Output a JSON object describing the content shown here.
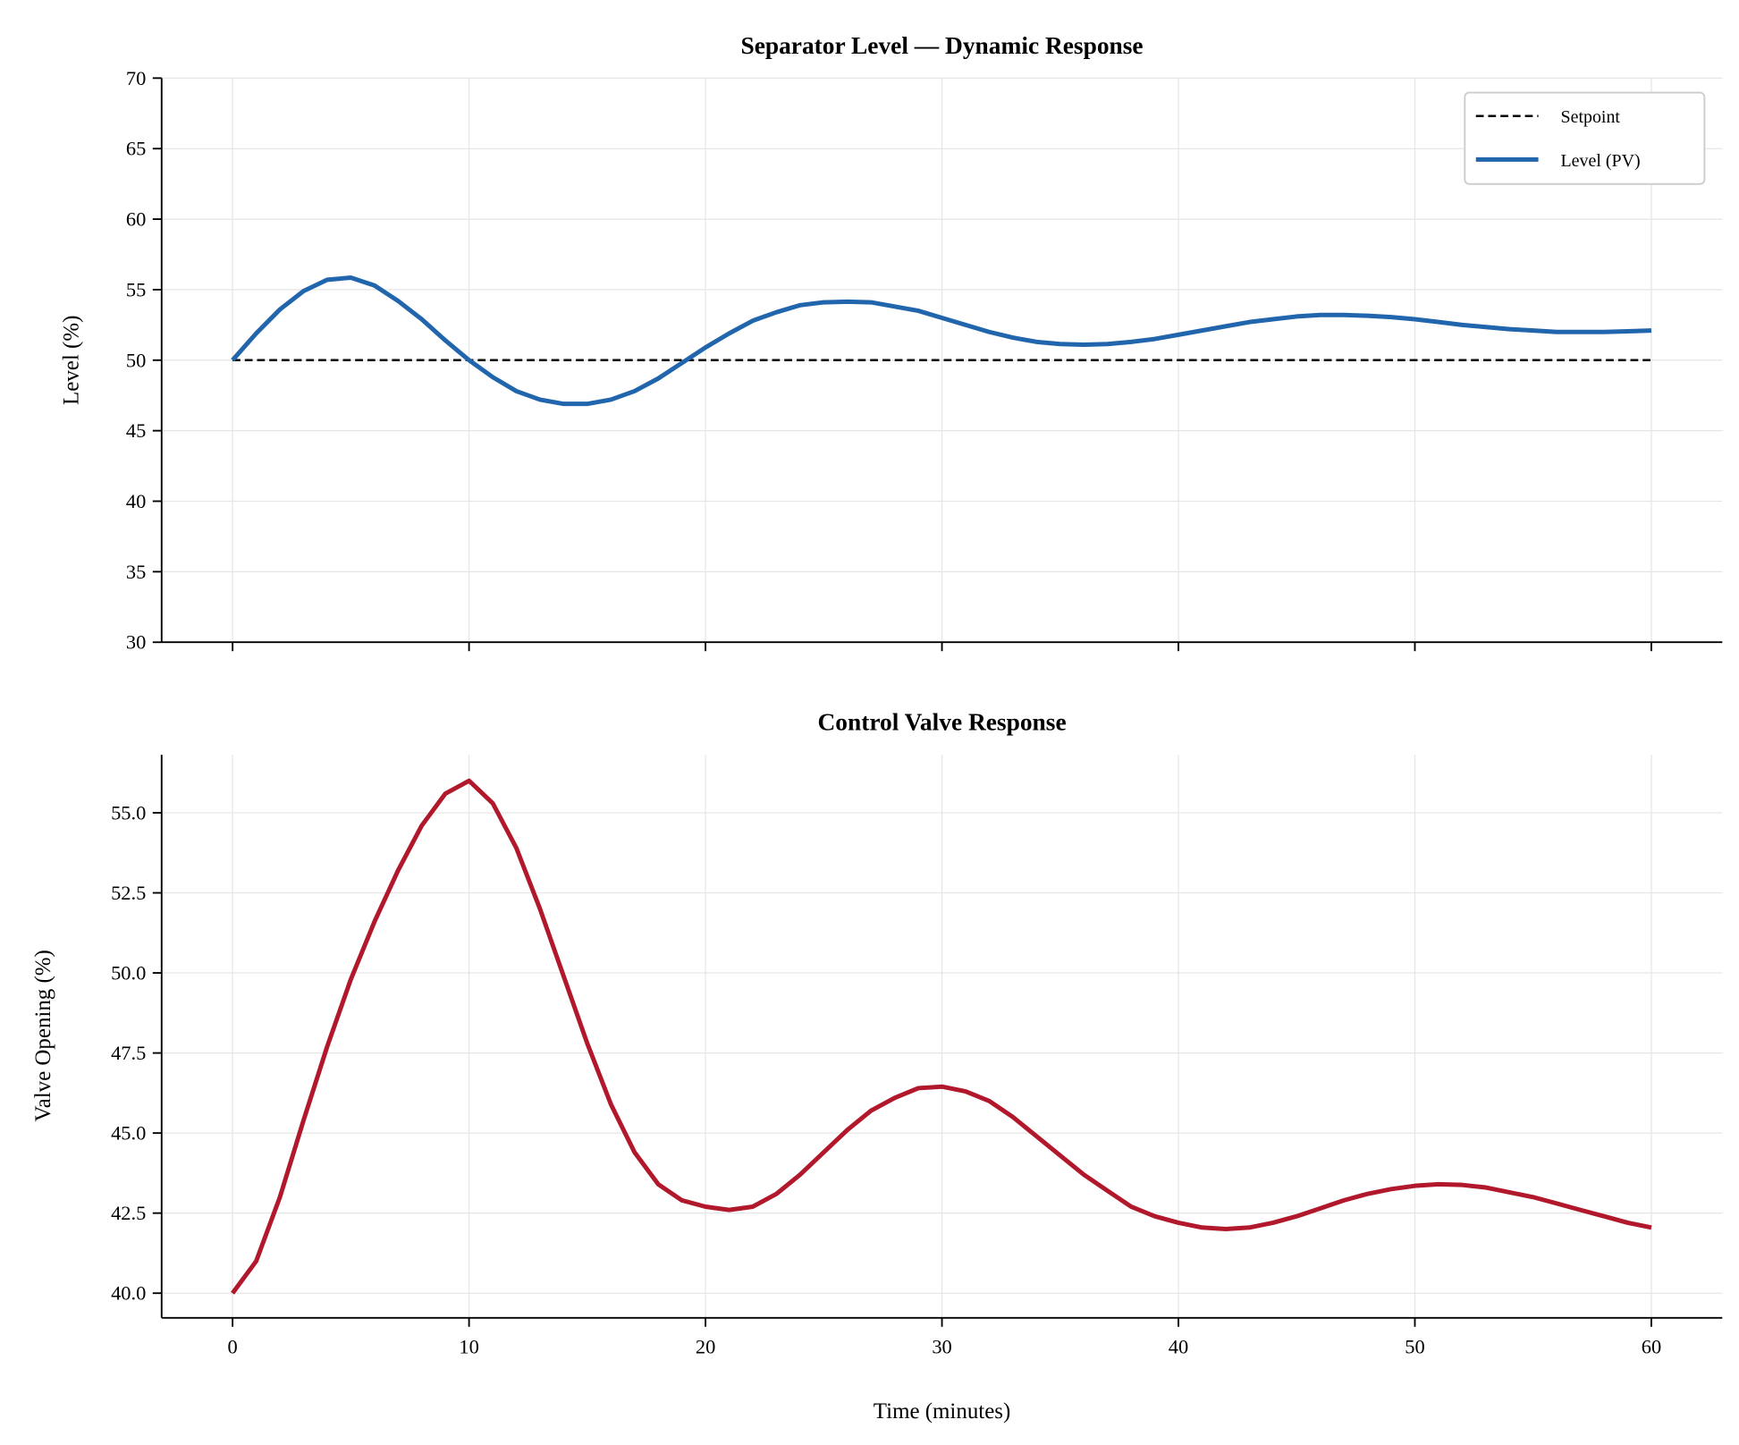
{
  "chart_data": [
    {
      "type": "line",
      "title": "Separator Level — Dynamic Response",
      "xlabel": "",
      "ylabel": "Level (%)",
      "xlim": [
        -3,
        63
      ],
      "ylim": [
        30,
        70
      ],
      "xticks": [
        0,
        10,
        20,
        30,
        40,
        50,
        60
      ],
      "yticks": [
        "30",
        "35",
        "40",
        "45",
        "50",
        "55",
        "60",
        "65",
        "70"
      ],
      "grid": true,
      "legend_position": "top-right",
      "x": [
        0,
        1,
        2,
        3,
        4,
        5,
        6,
        7,
        8,
        9,
        10,
        11,
        12,
        13,
        14,
        15,
        16,
        17,
        18,
        19,
        20,
        21,
        22,
        23,
        24,
        25,
        26,
        27,
        28,
        29,
        30,
        31,
        32,
        33,
        34,
        35,
        36,
        37,
        38,
        39,
        40,
        41,
        42,
        43,
        44,
        45,
        46,
        47,
        48,
        49,
        50,
        51,
        52,
        53,
        54,
        55,
        56,
        57,
        58,
        59,
        60
      ],
      "series": [
        {
          "name": "Setpoint",
          "color": "#000000",
          "style": "dashed",
          "values": [
            50,
            50,
            50,
            50,
            50,
            50,
            50,
            50,
            50,
            50,
            50,
            50,
            50,
            50,
            50,
            50,
            50,
            50,
            50,
            50,
            50,
            50,
            50,
            50,
            50,
            50,
            50,
            50,
            50,
            50,
            50,
            50,
            50,
            50,
            50,
            50,
            50,
            50,
            50,
            50,
            50,
            50,
            50,
            50,
            50,
            50,
            50,
            50,
            50,
            50,
            50,
            50,
            50,
            50,
            50,
            50,
            50,
            50,
            50,
            50,
            50
          ]
        },
        {
          "name": "Level (PV)",
          "color": "#2166ac",
          "style": "solid",
          "values": [
            50,
            51.9,
            53.6,
            54.9,
            55.7,
            55.85,
            55.3,
            54.2,
            52.9,
            51.4,
            50.0,
            48.8,
            47.8,
            47.2,
            46.9,
            46.9,
            47.2,
            47.8,
            48.7,
            49.8,
            50.9,
            51.9,
            52.8,
            53.4,
            53.9,
            54.1,
            54.15,
            54.1,
            53.8,
            53.5,
            53.0,
            52.5,
            52.0,
            51.6,
            51.3,
            51.15,
            51.1,
            51.15,
            51.3,
            51.5,
            51.8,
            52.1,
            52.4,
            52.7,
            52.9,
            53.1,
            53.2,
            53.2,
            53.15,
            53.05,
            52.9,
            52.7,
            52.5,
            52.35,
            52.2,
            52.1,
            52.0,
            52.0,
            52.0,
            52.05,
            52.1
          ]
        }
      ]
    },
    {
      "type": "line",
      "title": "Control Valve Response",
      "xlabel": "Time (minutes)",
      "ylabel": "Valve Opening (%)",
      "xlim": [
        -3,
        63
      ],
      "ylim": [
        39.23,
        56.81
      ],
      "xticks": [
        0,
        10,
        20,
        30,
        40,
        50,
        60
      ],
      "yticks": [
        "40.0",
        "42.5",
        "45.0",
        "47.5",
        "50.0",
        "52.5",
        "55.0"
      ],
      "grid": true,
      "x": [
        0,
        1,
        2,
        3,
        4,
        5,
        6,
        7,
        8,
        9,
        10,
        11,
        12,
        13,
        14,
        15,
        16,
        17,
        18,
        19,
        20,
        21,
        22,
        23,
        24,
        25,
        26,
        27,
        28,
        29,
        30,
        31,
        32,
        33,
        34,
        35,
        36,
        37,
        38,
        39,
        40,
        41,
        42,
        43,
        44,
        45,
        46,
        47,
        48,
        49,
        50,
        51,
        52,
        53,
        54,
        55,
        56,
        57,
        58,
        59,
        60
      ],
      "series": [
        {
          "color": "#b2182b",
          "style": "solid",
          "values": [
            40.0,
            41.0,
            43.0,
            45.4,
            47.7,
            49.8,
            51.6,
            53.2,
            54.6,
            55.6,
            56.0,
            55.3,
            53.9,
            52.0,
            49.9,
            47.8,
            45.9,
            44.4,
            43.4,
            42.9,
            42.7,
            42.6,
            42.7,
            43.1,
            43.7,
            44.4,
            45.1,
            45.7,
            46.1,
            46.4,
            46.45,
            46.3,
            46.0,
            45.5,
            44.9,
            44.3,
            43.7,
            43.2,
            42.7,
            42.4,
            42.2,
            42.05,
            42.0,
            42.05,
            42.2,
            42.4,
            42.65,
            42.9,
            43.1,
            43.25,
            43.35,
            43.4,
            43.38,
            43.3,
            43.15,
            43.0,
            42.8,
            42.6,
            42.4,
            42.2,
            42.05
          ]
        }
      ]
    }
  ]
}
